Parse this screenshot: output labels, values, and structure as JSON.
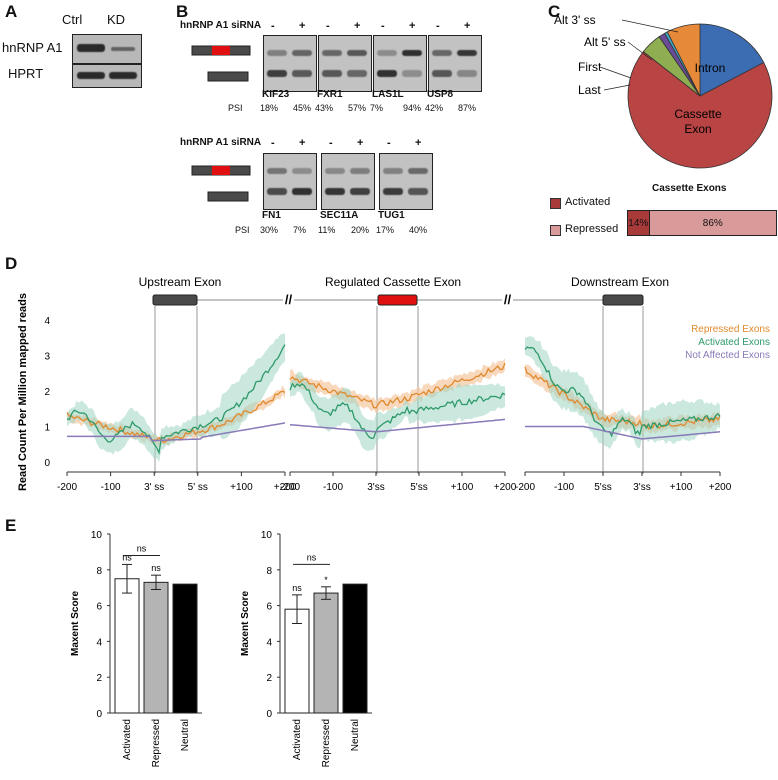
{
  "panels": {
    "A": "A",
    "B": "B",
    "C": "C",
    "D": "D",
    "E": "E"
  },
  "panelA": {
    "col_labels": [
      "Ctrl",
      "KD"
    ],
    "row_labels": [
      "hnRNP A1",
      "HPRT"
    ]
  },
  "panelB": {
    "sirna_label": "hnRNP A1 siRNA",
    "minus": "-",
    "plus": "+",
    "psi_label": "PSI",
    "row1": [
      {
        "gene": "KIF23",
        "psi": [
          "18%",
          "45%"
        ]
      },
      {
        "gene": "FXR1",
        "psi": [
          "43%",
          "57%"
        ]
      },
      {
        "gene": "LAS1L",
        "psi": [
          "7%",
          "94%"
        ]
      },
      {
        "gene": "USP8",
        "psi": [
          "42%",
          "87%"
        ]
      }
    ],
    "row2": [
      {
        "gene": "FN1",
        "psi": [
          "30%",
          "7%"
        ]
      },
      {
        "gene": "SEC11A",
        "psi": [
          "11%",
          "20%"
        ]
      },
      {
        "gene": "TUG1",
        "psi": [
          "17%",
          "40%"
        ]
      }
    ]
  },
  "panelC": {
    "chart_data": {
      "type": "pie",
      "labels": [
        "Intron",
        "Cassette Exon",
        "Last",
        "First",
        "Alt 5' ss",
        "Alt 3' ss"
      ],
      "values": [
        18,
        71,
        5,
        1.5,
        0.7,
        7.8
      ],
      "colors": [
        "#3c6db3",
        "#b84444",
        "#8fae52",
        "#6a4c96",
        "#3fa4c0",
        "#e68a3a"
      ]
    },
    "bar_title": "Cassette Exons",
    "legend": [
      {
        "label": "Activated",
        "color": "#a83a3a"
      },
      {
        "label": "Repressed",
        "color": "#d99a9a"
      }
    ],
    "bar": {
      "activated": 14,
      "repressed": 86,
      "activated_label": "14%",
      "repressed_label": "86%"
    }
  },
  "panelD": {
    "ylabel": "Read Count Per Million mapped reads",
    "segment_titles": [
      "Upstream Exon",
      "Regulated Cassette Exon",
      "Downstream Exon"
    ],
    "yticks": [
      "0",
      "1",
      "2",
      "3",
      "4"
    ],
    "xtick_labels": [
      [
        "-200",
        "-100",
        "3' ss",
        "5' ss",
        "+100",
        "+200"
      ],
      [
        "-200",
        "-100",
        "3'ss",
        "5'ss",
        "+100",
        "+200"
      ],
      [
        "-200",
        "-100",
        "5'ss",
        "3'ss",
        "+100",
        "+200"
      ]
    ],
    "legend": [
      {
        "label": "Repressed Exons",
        "color": "#e08a2e"
      },
      {
        "label": "Activated Exons",
        "color": "#2e9a6a"
      },
      {
        "label": "Not Affected Exons",
        "color": "#8a7ab8"
      }
    ]
  },
  "panelE": {
    "chart_data": [
      {
        "type": "bar",
        "categories": [
          "Activated",
          "Repressed",
          "Neutral"
        ],
        "values": [
          7.5,
          7.3,
          7.2
        ],
        "errors": [
          0.8,
          0.4,
          0.05
        ],
        "ylabel": "Maxent Score",
        "ylim": [
          0,
          10
        ],
        "sig": [
          "ns",
          "ns",
          ""
        ],
        "bracket": "ns"
      },
      {
        "type": "bar",
        "categories": [
          "Activated",
          "Repressed",
          "Neutral"
        ],
        "values": [
          5.8,
          6.7,
          7.2
        ],
        "errors": [
          0.8,
          0.35,
          0.05
        ],
        "ylabel": "Maxent Score",
        "ylim": [
          0,
          10
        ],
        "sig": [
          "ns",
          "*",
          ""
        ],
        "bracket": "ns"
      }
    ],
    "yticks": [
      "0",
      "2",
      "4",
      "6",
      "8",
      "10"
    ],
    "bar_colors": [
      "#ffffff",
      "#b4b4b4",
      "#000000"
    ]
  }
}
